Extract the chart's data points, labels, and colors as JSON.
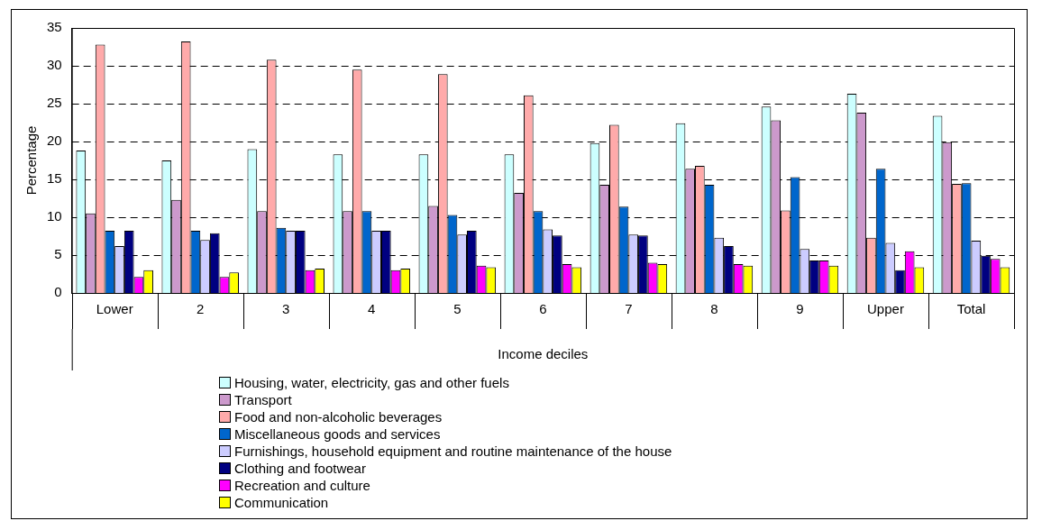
{
  "chart_data": {
    "type": "bar",
    "xlabel": "Income deciles",
    "ylabel": "Percentage",
    "categories": [
      "Lower",
      "2",
      "3",
      "4",
      "5",
      "6",
      "7",
      "8",
      "9",
      "Upper",
      "Total"
    ],
    "ylim": [
      0,
      35
    ],
    "yticks": [
      0,
      5,
      10,
      15,
      20,
      25,
      30,
      35
    ],
    "grid": "y",
    "legend": "bottom",
    "series": [
      {
        "name": "Housing, water, electricity, gas and other fuels",
        "color": "#ccffff",
        "values": [
          18.8,
          17.5,
          19.0,
          18.3,
          18.3,
          18.3,
          19.8,
          22.4,
          24.6,
          26.3,
          23.4
        ]
      },
      {
        "name": "Transport",
        "color": "#cc99cc",
        "values": [
          10.5,
          12.3,
          10.8,
          10.8,
          11.5,
          13.2,
          14.3,
          16.4,
          22.8,
          23.8,
          19.9
        ]
      },
      {
        "name": "Food and non-alcoholic beverages",
        "color": "#ffaaaa",
        "values": [
          32.8,
          33.2,
          30.8,
          29.5,
          28.9,
          26.1,
          22.2,
          16.8,
          10.9,
          7.3,
          14.4
        ]
      },
      {
        "name": "Miscellaneous goods and services",
        "color": "#0066cc",
        "values": [
          8.2,
          8.2,
          8.6,
          10.8,
          10.3,
          10.8,
          11.4,
          14.3,
          15.3,
          16.4,
          14.5
        ]
      },
      {
        "name": "Furnishings, household equipment and routine maintenance of the house",
        "color": "#ccccff",
        "values": [
          6.2,
          7.0,
          8.2,
          8.2,
          7.7,
          8.4,
          7.7,
          7.3,
          5.8,
          6.6,
          6.9
        ]
      },
      {
        "name": "Clothing and footwear",
        "color": "#000080",
        "values": [
          8.2,
          7.9,
          8.2,
          8.2,
          8.2,
          7.6,
          7.6,
          6.2,
          4.3,
          3.0,
          4.9
        ]
      },
      {
        "name": "Recreation and culture",
        "color": "#ff00ff",
        "values": [
          2.1,
          2.1,
          3.0,
          3.0,
          3.6,
          3.8,
          4.0,
          3.8,
          4.3,
          5.5,
          4.5
        ]
      },
      {
        "name": "Communication",
        "color": "#ffff00",
        "values": [
          3.0,
          2.7,
          3.2,
          3.2,
          3.4,
          3.4,
          3.8,
          3.6,
          3.6,
          3.4,
          3.4
        ]
      }
    ]
  }
}
